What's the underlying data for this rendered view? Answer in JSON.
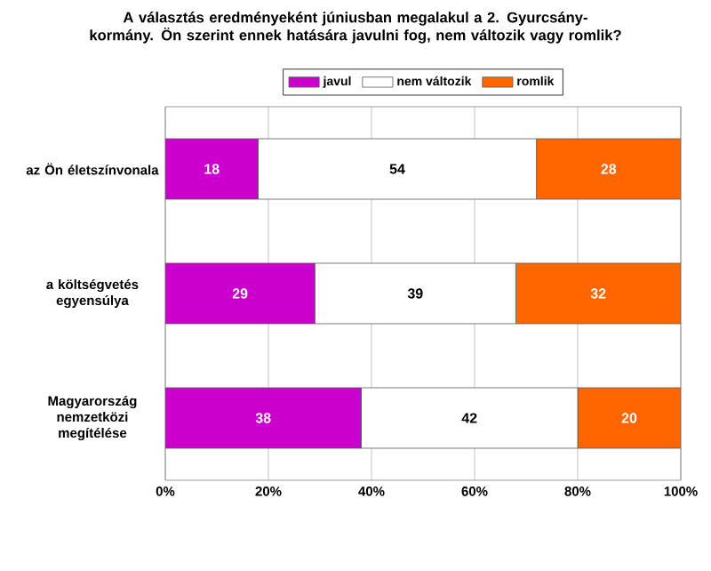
{
  "chart_data": {
    "type": "bar",
    "orientation": "horizontal",
    "stacked": true,
    "title": "A választás eredményeként júniusban megalakul a 2. Gyurcsány-kormány. Ön szerint ennek hatására javulni fog, nem változik vagy romlik?",
    "categories": [
      "az Ön életszínvonala",
      "a költségvetés egyensúlya",
      "Magyarország nemzetközi megítélése"
    ],
    "series": [
      {
        "name": "javul",
        "color": "#cc00cc",
        "values": [
          18,
          29,
          38
        ]
      },
      {
        "name": "nem változik",
        "color": "#ffffff",
        "values": [
          54,
          39,
          42
        ]
      },
      {
        "name": "romlik",
        "color": "#ff6600",
        "values": [
          28,
          32,
          20
        ]
      }
    ],
    "xlim": [
      0,
      100
    ],
    "xticks": [
      {
        "value": 0,
        "label": "0%"
      },
      {
        "value": 20,
        "label": "20%"
      },
      {
        "value": 40,
        "label": "40%"
      },
      {
        "value": 60,
        "label": "60%"
      },
      {
        "value": 80,
        "label": "80%"
      },
      {
        "value": 100,
        "label": "100%"
      }
    ],
    "grid": "x",
    "legend": "top",
    "data_labels": true
  }
}
